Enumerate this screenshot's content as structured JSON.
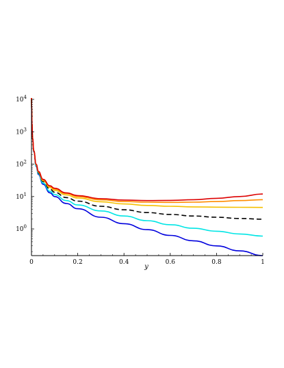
{
  "chart_data": {
    "type": "line",
    "title": "",
    "xlabel": "y",
    "ylabel": "",
    "xlim": [
      0,
      1
    ],
    "ylim": [
      0.15,
      10000
    ],
    "yscale": "log",
    "grid": false,
    "legend": "none",
    "x_ticks": [
      {
        "value": 0,
        "label": "0"
      },
      {
        "value": 0.2,
        "label": "0.2"
      },
      {
        "value": 0.4,
        "label": "0.4"
      },
      {
        "value": 0.6,
        "label": "0.6"
      },
      {
        "value": 0.8,
        "label": "0.8"
      },
      {
        "value": 1,
        "label": "1"
      }
    ],
    "y_ticks": [
      {
        "value": 1,
        "base": "10",
        "exp": "0"
      },
      {
        "value": 10,
        "base": "10",
        "exp": "1"
      },
      {
        "value": 100,
        "base": "10",
        "exp": "2"
      },
      {
        "value": 1000,
        "base": "10",
        "exp": "3"
      },
      {
        "value": 10000,
        "base": "10",
        "exp": "4"
      }
    ],
    "x": [
      0.002,
      0.005,
      0.01,
      0.02,
      0.03,
      0.05,
      0.08,
      0.1,
      0.15,
      0.2,
      0.3,
      0.4,
      0.5,
      0.6,
      0.7,
      0.8,
      0.9,
      1.0
    ],
    "series": [
      {
        "color": "#0000dd",
        "dash": "",
        "values": [
          1800,
          600,
          240,
          85,
          48,
          24,
          13,
          10,
          6.1,
          4.2,
          2.3,
          1.45,
          0.95,
          0.63,
          0.43,
          0.3,
          0.21,
          0.15
        ]
      },
      {
        "color": "#00e5e5",
        "dash": "",
        "values": [
          1800,
          600,
          245,
          88,
          51,
          26,
          14.5,
          11.5,
          7.5,
          5.5,
          3.6,
          2.5,
          1.8,
          1.35,
          1.05,
          0.85,
          0.7,
          0.6
        ]
      },
      {
        "color": "#000000",
        "dash": "7,4",
        "values": [
          1800,
          610,
          250,
          92,
          54,
          29,
          17,
          13.5,
          9.3,
          7.2,
          5.0,
          3.9,
          3.2,
          2.8,
          2.5,
          2.3,
          2.1,
          2.0
        ]
      },
      {
        "color": "#f5c000",
        "dash": "",
        "values": [
          1800,
          620,
          255,
          96,
          57,
          31,
          19,
          15.5,
          11.2,
          9.0,
          6.9,
          5.9,
          5.3,
          5.0,
          4.8,
          4.7,
          4.65,
          4.6
        ]
      },
      {
        "color": "#ff8c00",
        "dash": "",
        "values": [
          1800,
          625,
          258,
          98,
          59,
          33,
          20.5,
          17,
          12.3,
          10.0,
          7.9,
          7.0,
          6.7,
          6.6,
          6.7,
          7.0,
          7.5,
          8.0
        ]
      },
      {
        "color": "#dd0000",
        "dash": "",
        "values": [
          1800,
          630,
          260,
          100,
          60,
          34,
          21.5,
          18,
          13.0,
          10.7,
          8.6,
          7.8,
          7.5,
          7.6,
          8.0,
          8.8,
          10.0,
          12.0
        ]
      }
    ]
  }
}
